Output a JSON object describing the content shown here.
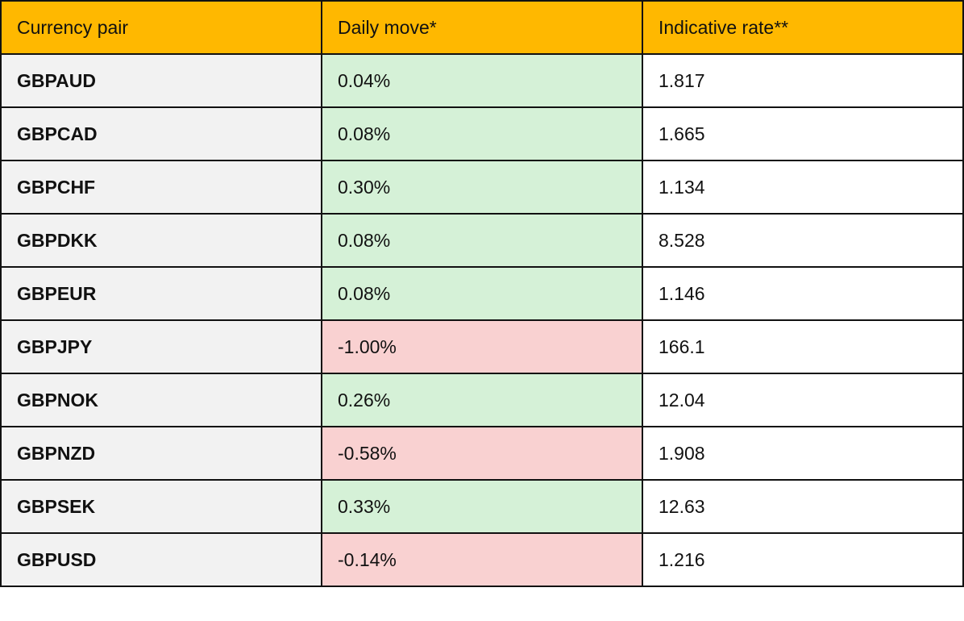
{
  "colors": {
    "header": "#ffb800",
    "pair_cell": "#f2f2f2",
    "positive": "#d5f1d7",
    "negative": "#f9d1d1",
    "border": "#111111"
  },
  "table": {
    "headers": [
      "Currency pair",
      "Daily move*",
      "Indicative rate**"
    ],
    "rows": [
      {
        "pair": "GBPAUD",
        "move": "0.04%",
        "direction": "up",
        "rate": "1.817"
      },
      {
        "pair": "GBPCAD",
        "move": "0.08%",
        "direction": "up",
        "rate": "1.665"
      },
      {
        "pair": "GBPCHF",
        "move": "0.30%",
        "direction": "up",
        "rate": "1.134"
      },
      {
        "pair": "GBPDKK",
        "move": "0.08%",
        "direction": "up",
        "rate": "8.528"
      },
      {
        "pair": "GBPEUR",
        "move": "0.08%",
        "direction": "up",
        "rate": "1.146"
      },
      {
        "pair": "GBPJPY",
        "move": "-1.00%",
        "direction": "down",
        "rate": "166.1"
      },
      {
        "pair": "GBPNOK",
        "move": "0.26%",
        "direction": "up",
        "rate": "12.04"
      },
      {
        "pair": "GBPNZD",
        "move": "-0.58%",
        "direction": "down",
        "rate": "1.908"
      },
      {
        "pair": "GBPSEK",
        "move": "0.33%",
        "direction": "up",
        "rate": "12.63"
      },
      {
        "pair": "GBPUSD",
        "move": "-0.14%",
        "direction": "down",
        "rate": "1.216"
      }
    ]
  }
}
